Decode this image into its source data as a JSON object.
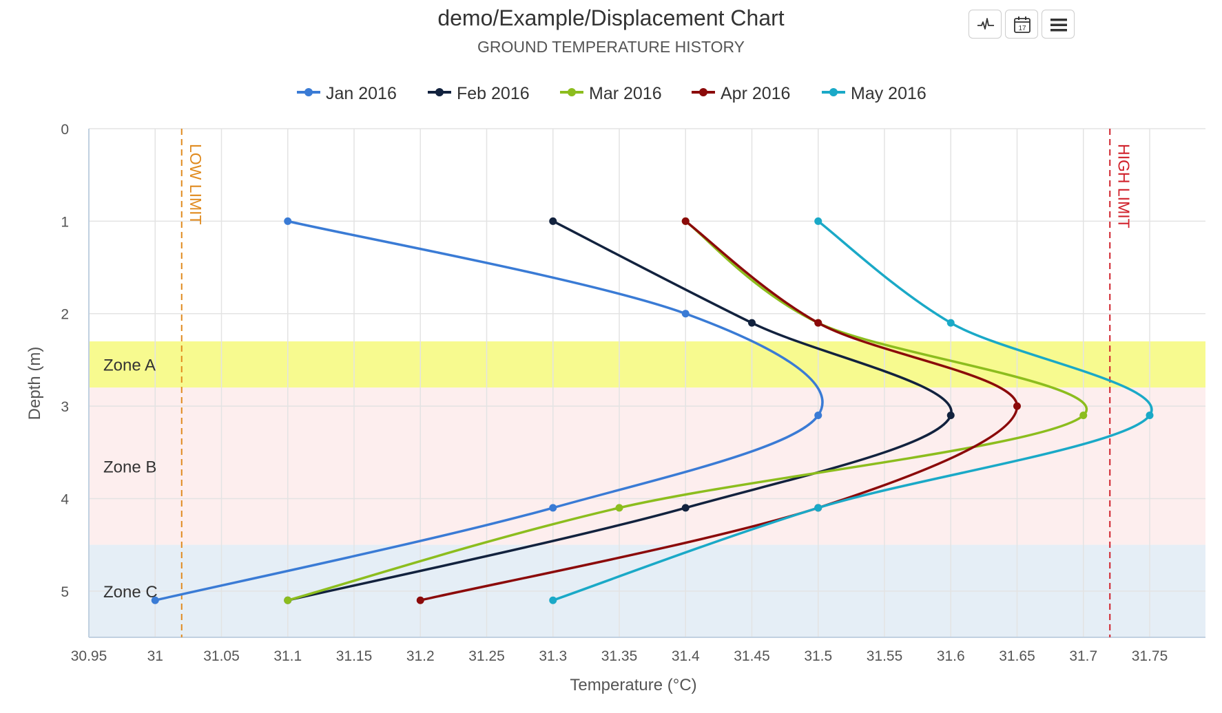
{
  "header": {
    "title": "demo/Example/Displacement Chart",
    "subtitle": "GROUND TEMPERATURE HISTORY"
  },
  "toolbar": [
    {
      "icon": "waveform-icon"
    },
    {
      "icon": "calendar-icon",
      "day": "17"
    },
    {
      "icon": "hamburger-menu-icon"
    }
  ],
  "chart_data": {
    "type": "line",
    "xlabel": "Temperature (°C)",
    "ylabel": "Depth (m)",
    "xlim": [
      30.95,
      31.79
    ],
    "ylim": [
      0,
      5.5
    ],
    "y_reversed": true,
    "grid": true,
    "legend_position": "top-center",
    "x_ticks": [
      "30.95",
      "31",
      "31.05",
      "31.1",
      "31.15",
      "31.2",
      "31.25",
      "31.3",
      "31.35",
      "31.4",
      "31.45",
      "31.5",
      "31.55",
      "31.6",
      "31.65",
      "31.7",
      "31.75"
    ],
    "y_ticks": [
      "0",
      "1",
      "2",
      "3",
      "4",
      "5"
    ],
    "bands": [
      {
        "label": "Zone A",
        "from": 2.3,
        "to": 2.8,
        "color": "#f7fa8f"
      },
      {
        "label": "Zone B",
        "from": 2.8,
        "to": 4.5,
        "color": "#fdeeee"
      },
      {
        "label": "Zone C",
        "from": 4.5,
        "to": 5.5,
        "color": "#e5eef6"
      }
    ],
    "limits": [
      {
        "label": "LOW LIMIT",
        "x": 31.02,
        "color": "#e08a1e"
      },
      {
        "label": "HIGH LIMIT",
        "x": 31.72,
        "color": "#d0202a"
      }
    ],
    "series": [
      {
        "name": "Jan 2016",
        "color": "#3a7bd5",
        "points": [
          [
            31.1,
            1.0
          ],
          [
            31.4,
            2.0
          ],
          [
            31.5,
            3.1
          ],
          [
            31.3,
            4.1
          ],
          [
            31.0,
            5.1
          ]
        ]
      },
      {
        "name": "Feb 2016",
        "color": "#12223e",
        "points": [
          [
            31.3,
            1.0
          ],
          [
            31.45,
            2.1
          ],
          [
            31.6,
            3.1
          ],
          [
            31.4,
            4.1
          ],
          [
            31.1,
            5.1
          ]
        ]
      },
      {
        "name": "Mar 2016",
        "color": "#8cbd1e",
        "points": [
          [
            31.4,
            1.0
          ],
          [
            31.5,
            2.1
          ],
          [
            31.7,
            3.1
          ],
          [
            31.35,
            4.1
          ],
          [
            31.1,
            5.1
          ]
        ]
      },
      {
        "name": "Apr 2016",
        "color": "#8b0a0a",
        "points": [
          [
            31.4,
            1.0
          ],
          [
            31.5,
            2.1
          ],
          [
            31.65,
            3.0
          ],
          [
            31.5,
            4.1
          ],
          [
            31.2,
            5.1
          ]
        ]
      },
      {
        "name": "May 2016",
        "color": "#1aa9c7",
        "points": [
          [
            31.5,
            1.0
          ],
          [
            31.6,
            2.1
          ],
          [
            31.75,
            3.1
          ],
          [
            31.5,
            4.1
          ],
          [
            31.3,
            5.1
          ]
        ]
      }
    ]
  }
}
